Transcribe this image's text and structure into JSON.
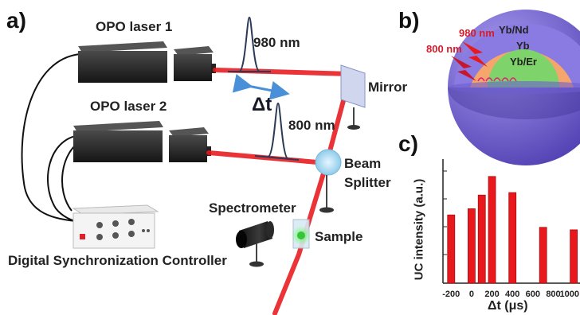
{
  "panel_a": {
    "letter": "a)",
    "laser1": "OPO laser 1",
    "laser2": "OPO laser 2",
    "wl1": "980 nm",
    "wl2": "800 nm",
    "delay": "Δt",
    "mirror": "Mirror",
    "beam_splitter_line1": "Beam",
    "beam_splitter_line2": "Splitter",
    "spectrometer": "Spectrometer",
    "sample": "Sample",
    "controller": "Digital Synchronization Controller"
  },
  "panel_b": {
    "letter": "b)",
    "wl1": "980 nm",
    "wl2": "800 nm",
    "shell_outer": "Yb/Nd",
    "shell_mid": "Yb",
    "core": "Yb/Er"
  },
  "panel_c": {
    "letter": "c)"
  },
  "colors": {
    "laser_beam": "#e8181c",
    "sphere_outer": "#7a6ad8",
    "sphere_mid": "#f4a66c",
    "sphere_core": "#7ed36a",
    "bar": "#e8181c"
  },
  "chart_data": {
    "type": "bar",
    "title": "",
    "xlabel": "Δt (μs)",
    "ylabel": "UC intensity (a.u.)",
    "x_ticks": [
      "-200",
      "0",
      "200",
      "400",
      "600",
      "800",
      "1000"
    ],
    "x_tick_values": [
      -200,
      0,
      200,
      400,
      600,
      800,
      1000
    ],
    "xlim": [
      -280,
      1030
    ],
    "ylim": [
      0,
      1
    ],
    "bars": [
      {
        "x": -200,
        "y": 0.55
      },
      {
        "x": 0,
        "y": 0.6
      },
      {
        "x": 100,
        "y": 0.71
      },
      {
        "x": 200,
        "y": 0.86
      },
      {
        "x": 400,
        "y": 0.73
      },
      {
        "x": 700,
        "y": 0.45
      },
      {
        "x": 1000,
        "y": 0.43
      }
    ],
    "grid": false,
    "legend": "none"
  }
}
